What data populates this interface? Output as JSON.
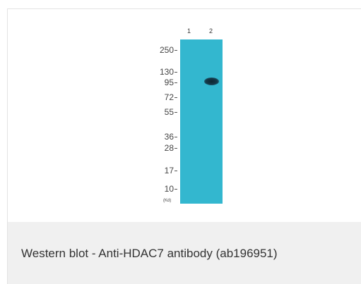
{
  "blot": {
    "lanes": [
      "1",
      "2"
    ],
    "markers": [
      {
        "label": "250"
      },
      {
        "label": "130"
      },
      {
        "label": "95"
      },
      {
        "label": "72"
      },
      {
        "label": "55"
      },
      {
        "label": "36"
      },
      {
        "label": "28"
      },
      {
        "label": "17"
      },
      {
        "label": "10"
      }
    ],
    "unit": "(Kd)",
    "membrane_color": "#33b7cf",
    "band_color": "#15394a"
  },
  "caption": {
    "text": "Western blot - Anti-HDAC7 antibody (ab196951)"
  }
}
